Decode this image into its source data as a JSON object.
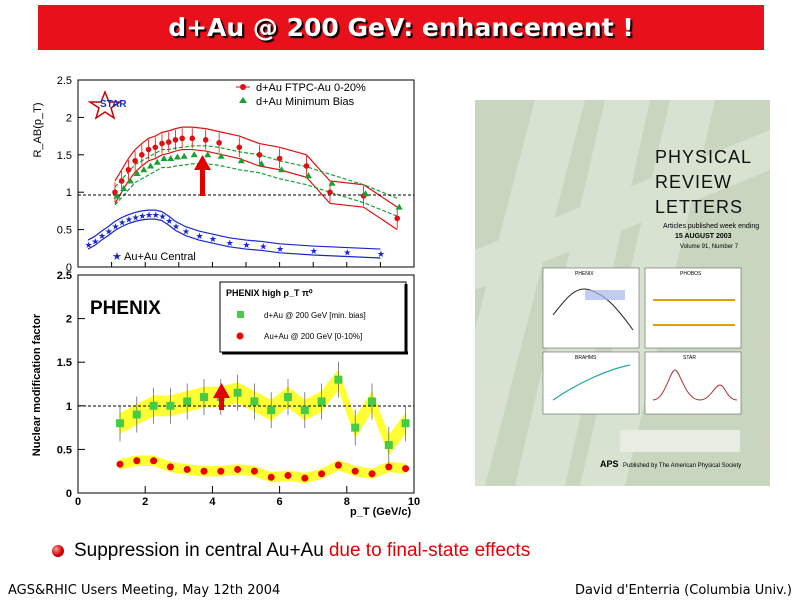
{
  "slide": {
    "title": "d+Au @ 200 GeV: enhancement !",
    "bullet": {
      "plain": "Suppression in central Au+Au",
      "red": "due to final-state effects"
    },
    "footer_left": "AGS&RHIC Users Meeting, May 12th 2004",
    "footer_right": "David d'Enterria (Columbia Univ.)"
  },
  "star_panel": {
    "logo": "STAR",
    "ylabel": "R_AB(p_T)",
    "yticks": [
      "0",
      "0.5",
      "1",
      "1.5",
      "2",
      "2.5"
    ],
    "legend": [
      "d+Au FTPC-Au 0-20%",
      "d+Au Minimum Bias"
    ],
    "label_auau": "Au+Au Central",
    "colors": {
      "central": "#e01010",
      "minbias": "#18a030",
      "auau": "#1828c8"
    }
  },
  "phenix_panel": {
    "logo": "PHENIX",
    "ylabel": "Nuclear modification factor",
    "xlabel": "p_T (GeV/c)",
    "yticks": [
      "0",
      "0.5",
      "1",
      "1.5",
      "2",
      "2.5"
    ],
    "xticks": [
      "0",
      "2",
      "4",
      "6",
      "8",
      "10"
    ],
    "legend_title": "PHENIX high p_T π⁰",
    "legend": [
      "d+Au @ 200 GeV [min. bias]",
      "Au+Au @ 200 GeV [0-10%]"
    ],
    "colors": {
      "dau": "#44cc44",
      "auau": "#ee0000",
      "band": "#ffff33"
    }
  },
  "chart_data": [
    {
      "type": "scatter",
      "ylabel": "R_AB(p_T)",
      "ylim": [
        0,
        2.5
      ],
      "xlim": [
        0,
        10
      ],
      "series": [
        {
          "name": "d+Au FTPC-Au 0-20%",
          "x": [
            1.1,
            1.3,
            1.5,
            1.7,
            1.9,
            2.1,
            2.3,
            2.5,
            2.7,
            2.9,
            3.1,
            3.4,
            3.8,
            4.2,
            4.8,
            5.4,
            6.0,
            6.8,
            7.5,
            8.5,
            9.5
          ],
          "y": [
            1.0,
            1.15,
            1.3,
            1.42,
            1.5,
            1.57,
            1.6,
            1.65,
            1.67,
            1.7,
            1.72,
            1.72,
            1.7,
            1.66,
            1.6,
            1.5,
            1.45,
            1.35,
            1.0,
            0.95,
            0.65
          ]
        },
        {
          "name": "d+Au Minimum Bias",
          "x": [
            1.1,
            1.3,
            1.5,
            1.7,
            1.9,
            2.1,
            2.3,
            2.5,
            2.7,
            2.9,
            3.1,
            3.4,
            3.8,
            4.2,
            4.8,
            5.4,
            6.0,
            6.8,
            7.5,
            8.5,
            9.5
          ],
          "y": [
            0.95,
            1.05,
            1.15,
            1.25,
            1.3,
            1.35,
            1.4,
            1.45,
            1.45,
            1.47,
            1.48,
            1.5,
            1.5,
            1.48,
            1.42,
            1.38,
            1.3,
            1.22,
            1.12,
            0.98,
            0.8
          ]
        },
        {
          "name": "Au+Au Central",
          "x": [
            0.3,
            0.5,
            0.7,
            0.9,
            1.1,
            1.3,
            1.5,
            1.7,
            1.9,
            2.1,
            2.3,
            2.5,
            2.7,
            2.9,
            3.2,
            3.6,
            4.0,
            4.5,
            5.0,
            5.5,
            6.0,
            7.0,
            8.0,
            9.0
          ],
          "y": [
            0.3,
            0.35,
            0.42,
            0.48,
            0.55,
            0.6,
            0.64,
            0.67,
            0.69,
            0.7,
            0.7,
            0.68,
            0.62,
            0.55,
            0.48,
            0.42,
            0.38,
            0.33,
            0.3,
            0.28,
            0.25,
            0.22,
            0.2,
            0.18
          ]
        }
      ]
    },
    {
      "type": "scatter",
      "xlabel": "p_T (GeV/c)",
      "ylabel": "Nuclear modification factor",
      "xlim": [
        0,
        10
      ],
      "ylim": [
        0,
        2.5
      ],
      "series": [
        {
          "name": "d+Au @ 200 GeV [min. bias]",
          "x": [
            1.25,
            1.75,
            2.25,
            2.75,
            3.25,
            3.75,
            4.25,
            4.75,
            5.25,
            5.75,
            6.25,
            6.75,
            7.25,
            7.75,
            8.25,
            8.75,
            9.25,
            9.75
          ],
          "y": [
            0.8,
            0.9,
            1.0,
            1.0,
            1.05,
            1.1,
            1.1,
            1.15,
            1.05,
            0.95,
            1.1,
            0.95,
            1.05,
            1.3,
            0.75,
            1.05,
            0.55,
            0.8
          ]
        },
        {
          "name": "Au+Au @ 200 GeV [0-10%]",
          "x": [
            1.25,
            1.75,
            2.25,
            2.75,
            3.25,
            3.75,
            4.25,
            4.75,
            5.25,
            5.75,
            6.25,
            6.75,
            7.25,
            7.75,
            8.25,
            8.75,
            9.25,
            9.75
          ],
          "y": [
            0.33,
            0.37,
            0.37,
            0.3,
            0.27,
            0.25,
            0.25,
            0.27,
            0.25,
            0.18,
            0.2,
            0.17,
            0.22,
            0.32,
            0.25,
            0.22,
            0.3,
            0.28
          ]
        }
      ]
    }
  ],
  "journal_cover": {
    "title_line1": "PHYSICAL",
    "title_line2": "REVIEW",
    "title_line3": "LETTERS",
    "issue_line1": "Articles published week ending",
    "issue_line2": "15 AUGUST 2003",
    "issue_line3": "Volume 91, Number 7",
    "panel_labels": [
      "PHENIX",
      "PHOBOS",
      "BRAHMS",
      "STAR"
    ],
    "publisher": "Published by The American Physical Society",
    "publisher_logo": "APS"
  }
}
